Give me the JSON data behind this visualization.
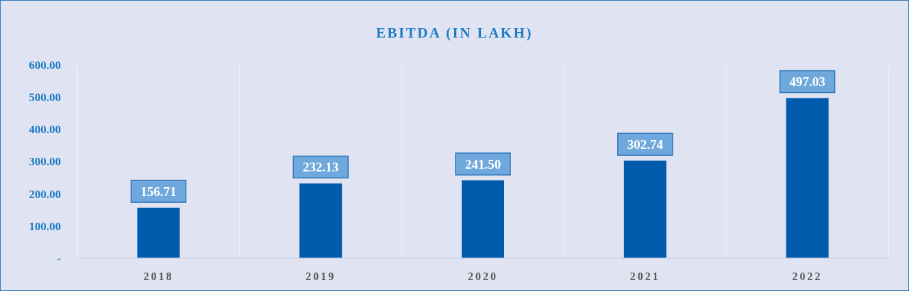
{
  "chart_data": {
    "type": "bar",
    "title": "EBITDA (IN LAKH)",
    "categories": [
      "2018",
      "2019",
      "2020",
      "2021",
      "2022"
    ],
    "values": [
      156.71,
      232.13,
      241.5,
      302.74,
      497.03
    ],
    "value_labels": [
      "156.71",
      "232.13",
      "241.50",
      "302.74",
      "497.03"
    ],
    "color": "#005bac",
    "ylim": [
      0,
      600
    ],
    "yticks": [
      {
        "value": 0,
        "label": "-"
      },
      {
        "value": 100,
        "label": "100.00"
      },
      {
        "value": 200,
        "label": "200.00"
      },
      {
        "value": 300,
        "label": "300.00"
      },
      {
        "value": 400,
        "label": "400.00"
      },
      {
        "value": 500,
        "label": "500.00"
      },
      {
        "value": 600,
        "label": "600.00"
      }
    ],
    "grid": "x"
  }
}
